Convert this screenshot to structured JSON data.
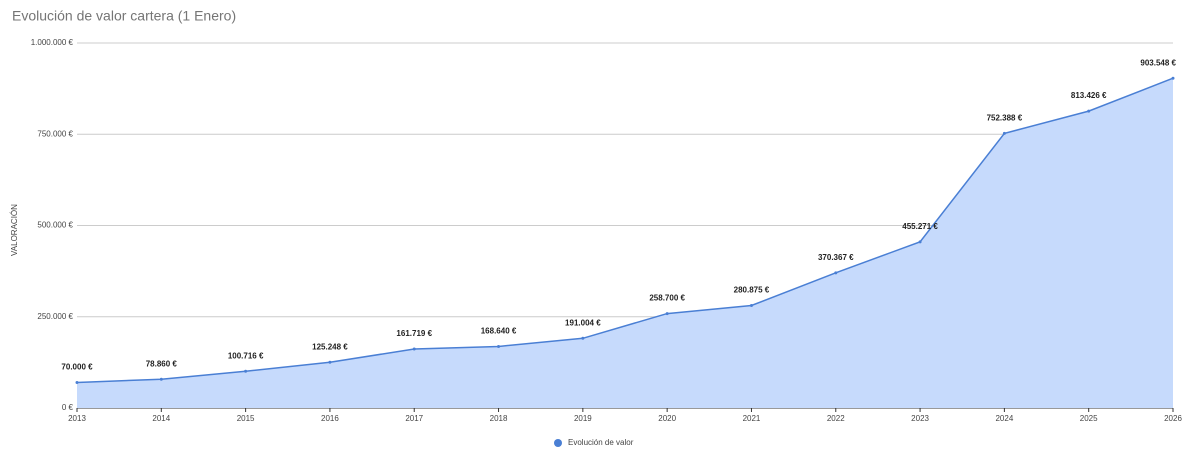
{
  "chart_data": {
    "type": "area",
    "title": "Evolución de valor cartera (1 Enero)",
    "y_label": "VALORACIÓN",
    "categories": [
      "2013",
      "2014",
      "2015",
      "2016",
      "2017",
      "2018",
      "2019",
      "2020",
      "2021",
      "2022",
      "2023",
      "2024",
      "2025",
      "2026"
    ],
    "series": [
      {
        "name": "Evolución de valor",
        "color": "#4a7fd4",
        "fill_color": "#c6dafc",
        "values": [
          70000,
          78860,
          100716,
          125248,
          161719,
          168640,
          191004,
          258700,
          280875,
          370367,
          455271,
          752388,
          813426,
          903548
        ],
        "value_labels": [
          "70.000 €",
          "78.860 €",
          "100.716 €",
          "125.248 €",
          "161.719 €",
          "168.640 €",
          "191.004 €",
          "258.700 €",
          "280.875 €",
          "370.367 €",
          "455.271 €",
          "752.388 €",
          "813.426 €",
          "903.548 €"
        ]
      }
    ],
    "ylim": [
      0,
      1000000
    ],
    "yticks": [
      {
        "value": 0,
        "label": "0 €"
      },
      {
        "value": 250000,
        "label": "250.000 €"
      },
      {
        "value": 500000,
        "label": "500.000 €"
      },
      {
        "value": 750000,
        "label": "750.000 €"
      },
      {
        "value": 1000000,
        "label": "1.000.000 €"
      }
    ],
    "grid": true,
    "legend": "bottom"
  }
}
